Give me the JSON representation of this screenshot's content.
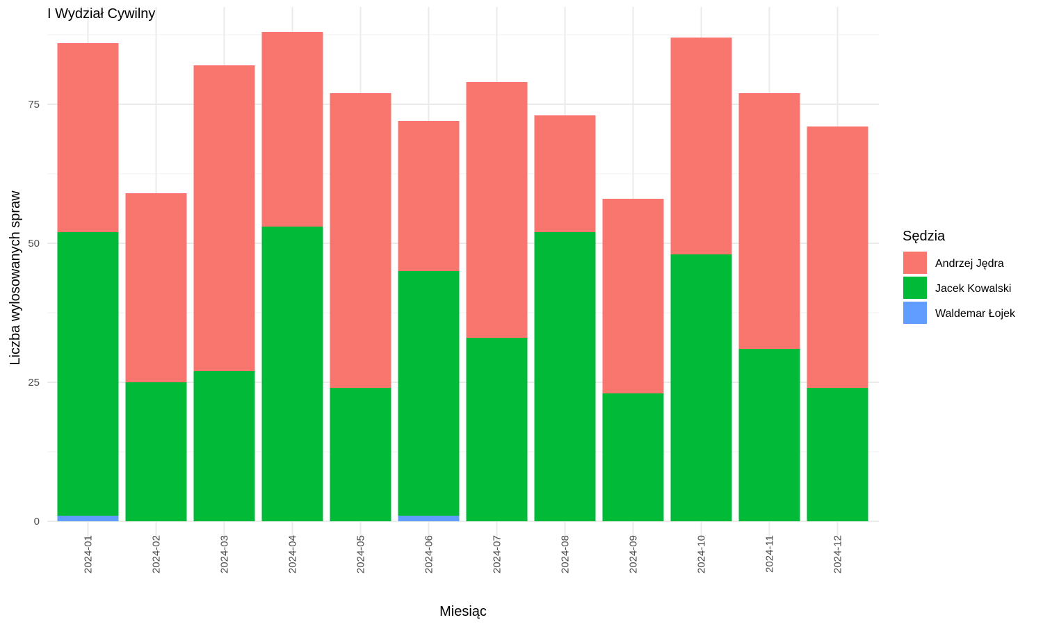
{
  "chart_data": {
    "type": "bar",
    "stacked": true,
    "title": "I Wydział Cywilny",
    "xlabel": "Miesiąc",
    "ylabel": "Liczba wylosowanych spraw",
    "categories": [
      "2024-01",
      "2024-02",
      "2024-03",
      "2024-04",
      "2024-05",
      "2024-06",
      "2024-07",
      "2024-08",
      "2024-09",
      "2024-10",
      "2024-11",
      "2024-12"
    ],
    "series": [
      {
        "name": "Waldemar Łojek",
        "color": "#619CFF",
        "values": [
          1,
          0,
          0,
          0,
          0,
          1,
          0,
          0,
          0,
          0,
          0,
          0
        ]
      },
      {
        "name": "Jacek Kowalski",
        "color": "#00BA38",
        "values": [
          51,
          25,
          27,
          53,
          24,
          44,
          33,
          52,
          23,
          48,
          31,
          24
        ]
      },
      {
        "name": "Andrzej Jędra",
        "color": "#F8766D",
        "values": [
          34,
          34,
          55,
          35,
          53,
          27,
          46,
          21,
          35,
          39,
          46,
          47
        ]
      }
    ],
    "ylim": [
      0,
      92
    ],
    "yticks": [
      0,
      25,
      50,
      75
    ],
    "grid": true,
    "legend": {
      "title": "Sędzia",
      "position": "right",
      "entries": [
        "Andrzej Jędra",
        "Jacek Kowalski",
        "Waldemar Łojek"
      ]
    }
  }
}
